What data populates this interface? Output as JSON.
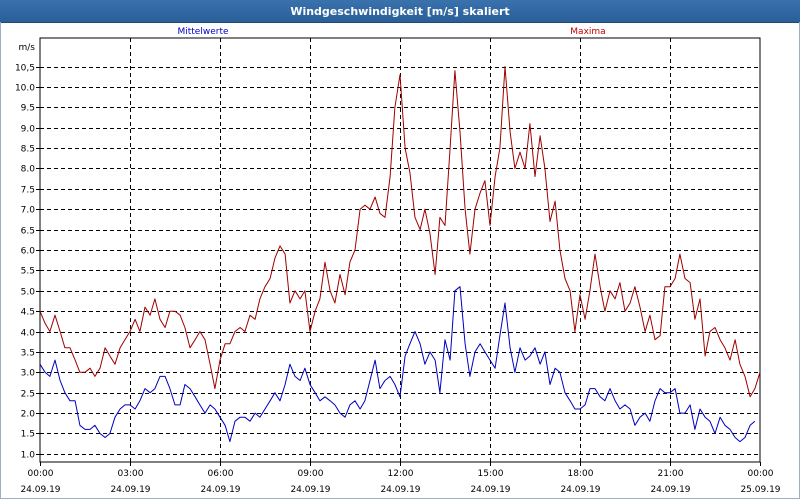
{
  "window": {
    "title": "Windgeschwindigkeit [m/s] skaliert"
  },
  "chart_data": {
    "type": "line",
    "title": "Windgeschwindigkeit [m/s] skaliert",
    "ylabel": "m/s",
    "xlabel": "",
    "ylim": [
      0.8,
      11.2
    ],
    "yticks": [
      1.0,
      1.5,
      2.0,
      2.5,
      3.0,
      3.5,
      4.0,
      4.5,
      5.0,
      5.5,
      6.0,
      6.5,
      7.0,
      7.5,
      8.0,
      8.5,
      9.0,
      9.5,
      10.0,
      10.5
    ],
    "ytick_labels": [
      "1.0",
      "1.5",
      "2.0",
      "2.5",
      "3.0",
      "3.5",
      "4.0",
      "4.5",
      "5.0",
      "5.5",
      "6.0",
      "6.5",
      "7.0",
      "7.5",
      "8.0",
      "8.5",
      "9.0",
      "9.5",
      "10.0",
      "10,5"
    ],
    "xlim_hours": [
      0,
      24
    ],
    "xticks": [
      {
        "h": 0,
        "time": "00:00",
        "date": "24.09.19"
      },
      {
        "h": 3,
        "time": "03:00",
        "date": "24.09.19"
      },
      {
        "h": 6,
        "time": "06:00",
        "date": "24.09.19"
      },
      {
        "h": 9,
        "time": "09:00",
        "date": "24.09.19"
      },
      {
        "h": 12,
        "time": "12:00",
        "date": "24.09.19"
      },
      {
        "h": 15,
        "time": "15:00",
        "date": "24.09.19"
      },
      {
        "h": 18,
        "time": "18:00",
        "date": "24.09.19"
      },
      {
        "h": 21,
        "time": "21:00",
        "date": "24.09.19"
      },
      {
        "h": 24,
        "time": "00:00",
        "date": "25.09.19"
      }
    ],
    "grid": true,
    "series": [
      {
        "name": "Mittelwerte",
        "color": "#0000c0",
        "points": [
          [
            0.0,
            3.2
          ],
          [
            0.17,
            3.0
          ],
          [
            0.33,
            2.9
          ],
          [
            0.5,
            3.3
          ],
          [
            0.67,
            2.8
          ],
          [
            0.83,
            2.5
          ],
          [
            1.0,
            2.3
          ],
          [
            1.17,
            2.3
          ],
          [
            1.33,
            1.7
          ],
          [
            1.5,
            1.6
          ],
          [
            1.67,
            1.6
          ],
          [
            1.83,
            1.7
          ],
          [
            2.0,
            1.5
          ],
          [
            2.17,
            1.4
          ],
          [
            2.33,
            1.5
          ],
          [
            2.5,
            1.9
          ],
          [
            2.67,
            2.1
          ],
          [
            2.83,
            2.2
          ],
          [
            3.0,
            2.2
          ],
          [
            3.17,
            2.1
          ],
          [
            3.33,
            2.3
          ],
          [
            3.5,
            2.6
          ],
          [
            3.67,
            2.5
          ],
          [
            3.83,
            2.6
          ],
          [
            4.0,
            2.9
          ],
          [
            4.17,
            2.9
          ],
          [
            4.33,
            2.6
          ],
          [
            4.5,
            2.2
          ],
          [
            4.67,
            2.2
          ],
          [
            4.83,
            2.7
          ],
          [
            5.0,
            2.6
          ],
          [
            5.17,
            2.4
          ],
          [
            5.33,
            2.2
          ],
          [
            5.5,
            2.0
          ],
          [
            5.67,
            2.2
          ],
          [
            5.83,
            2.1
          ],
          [
            6.0,
            1.9
          ],
          [
            6.17,
            1.7
          ],
          [
            6.33,
            1.3
          ],
          [
            6.5,
            1.8
          ],
          [
            6.67,
            1.9
          ],
          [
            6.83,
            1.9
          ],
          [
            7.0,
            1.8
          ],
          [
            7.17,
            2.0
          ],
          [
            7.33,
            1.9
          ],
          [
            7.5,
            2.1
          ],
          [
            7.67,
            2.3
          ],
          [
            7.83,
            2.5
          ],
          [
            8.0,
            2.3
          ],
          [
            8.17,
            2.7
          ],
          [
            8.33,
            3.2
          ],
          [
            8.5,
            2.9
          ],
          [
            8.67,
            2.8
          ],
          [
            8.83,
            3.1
          ],
          [
            9.0,
            2.7
          ],
          [
            9.17,
            2.5
          ],
          [
            9.33,
            2.3
          ],
          [
            9.5,
            2.4
          ],
          [
            9.67,
            2.3
          ],
          [
            9.83,
            2.2
          ],
          [
            10.0,
            2.0
          ],
          [
            10.17,
            1.9
          ],
          [
            10.33,
            2.2
          ],
          [
            10.5,
            2.3
          ],
          [
            10.67,
            2.1
          ],
          [
            10.83,
            2.3
          ],
          [
            11.0,
            2.8
          ],
          [
            11.17,
            3.3
          ],
          [
            11.33,
            2.6
          ],
          [
            11.5,
            2.8
          ],
          [
            11.67,
            2.9
          ],
          [
            11.83,
            2.7
          ],
          [
            12.0,
            2.4
          ],
          [
            12.17,
            3.4
          ],
          [
            12.33,
            3.7
          ],
          [
            12.5,
            4.0
          ],
          [
            12.67,
            3.7
          ],
          [
            12.83,
            3.2
          ],
          [
            13.0,
            3.5
          ],
          [
            13.17,
            3.3
          ],
          [
            13.33,
            2.5
          ],
          [
            13.5,
            3.8
          ],
          [
            13.67,
            3.3
          ],
          [
            13.83,
            5.0
          ],
          [
            14.0,
            5.1
          ],
          [
            14.17,
            3.7
          ],
          [
            14.33,
            2.9
          ],
          [
            14.5,
            3.5
          ],
          [
            14.67,
            3.7
          ],
          [
            14.83,
            3.5
          ],
          [
            15.0,
            3.3
          ],
          [
            15.17,
            3.1
          ],
          [
            15.33,
            3.9
          ],
          [
            15.5,
            4.7
          ],
          [
            15.67,
            3.6
          ],
          [
            15.83,
            3.0
          ],
          [
            16.0,
            3.6
          ],
          [
            16.17,
            3.3
          ],
          [
            16.33,
            3.4
          ],
          [
            16.5,
            3.6
          ],
          [
            16.67,
            3.2
          ],
          [
            16.83,
            3.5
          ],
          [
            17.0,
            2.7
          ],
          [
            17.17,
            3.1
          ],
          [
            17.33,
            3.0
          ],
          [
            17.5,
            2.5
          ],
          [
            17.67,
            2.3
          ],
          [
            17.83,
            2.1
          ],
          [
            18.0,
            2.1
          ],
          [
            18.17,
            2.2
          ],
          [
            18.33,
            2.6
          ],
          [
            18.5,
            2.6
          ],
          [
            18.67,
            2.4
          ],
          [
            18.83,
            2.3
          ],
          [
            19.0,
            2.6
          ],
          [
            19.17,
            2.3
          ],
          [
            19.33,
            2.1
          ],
          [
            19.5,
            2.2
          ],
          [
            19.67,
            2.1
          ],
          [
            19.83,
            1.7
          ],
          [
            20.0,
            1.9
          ],
          [
            20.17,
            2.0
          ],
          [
            20.33,
            1.8
          ],
          [
            20.5,
            2.3
          ],
          [
            20.67,
            2.6
          ],
          [
            20.83,
            2.5
          ],
          [
            21.0,
            2.5
          ],
          [
            21.17,
            2.6
          ],
          [
            21.33,
            2.0
          ],
          [
            21.5,
            2.0
          ],
          [
            21.67,
            2.2
          ],
          [
            21.83,
            1.6
          ],
          [
            22.0,
            2.1
          ],
          [
            22.17,
            1.9
          ],
          [
            22.33,
            1.8
          ],
          [
            22.5,
            1.5
          ],
          [
            22.67,
            1.9
          ],
          [
            22.83,
            1.7
          ],
          [
            23.0,
            1.6
          ],
          [
            23.17,
            1.4
          ],
          [
            23.33,
            1.3
          ],
          [
            23.5,
            1.4
          ],
          [
            23.67,
            1.7
          ],
          [
            23.83,
            1.8
          ]
        ]
      },
      {
        "name": "Maxima",
        "color": "#a00000",
        "points": [
          [
            0.0,
            4.5
          ],
          [
            0.17,
            4.2
          ],
          [
            0.33,
            4.0
          ],
          [
            0.5,
            4.4
          ],
          [
            0.67,
            4.0
          ],
          [
            0.83,
            3.6
          ],
          [
            1.0,
            3.6
          ],
          [
            1.17,
            3.3
          ],
          [
            1.33,
            3.0
          ],
          [
            1.5,
            3.0
          ],
          [
            1.67,
            3.1
          ],
          [
            1.83,
            2.9
          ],
          [
            2.0,
            3.1
          ],
          [
            2.17,
            3.6
          ],
          [
            2.33,
            3.4
          ],
          [
            2.5,
            3.2
          ],
          [
            2.67,
            3.6
          ],
          [
            2.83,
            3.8
          ],
          [
            3.0,
            4.0
          ],
          [
            3.17,
            4.3
          ],
          [
            3.33,
            4.0
          ],
          [
            3.5,
            4.6
          ],
          [
            3.67,
            4.4
          ],
          [
            3.83,
            4.8
          ],
          [
            4.0,
            4.3
          ],
          [
            4.17,
            4.1
          ],
          [
            4.33,
            4.5
          ],
          [
            4.5,
            4.5
          ],
          [
            4.67,
            4.4
          ],
          [
            4.83,
            4.1
          ],
          [
            5.0,
            3.6
          ],
          [
            5.17,
            3.8
          ],
          [
            5.33,
            4.0
          ],
          [
            5.5,
            3.8
          ],
          [
            5.67,
            3.2
          ],
          [
            5.83,
            2.6
          ],
          [
            6.0,
            3.3
          ],
          [
            6.17,
            3.7
          ],
          [
            6.33,
            3.7
          ],
          [
            6.5,
            4.0
          ],
          [
            6.67,
            4.1
          ],
          [
            6.83,
            4.0
          ],
          [
            7.0,
            4.4
          ],
          [
            7.17,
            4.3
          ],
          [
            7.33,
            4.8
          ],
          [
            7.5,
            5.1
          ],
          [
            7.67,
            5.3
          ],
          [
            7.83,
            5.8
          ],
          [
            8.0,
            6.1
          ],
          [
            8.17,
            5.9
          ],
          [
            8.33,
            4.7
          ],
          [
            8.5,
            5.0
          ],
          [
            8.67,
            4.8
          ],
          [
            8.83,
            5.0
          ],
          [
            9.0,
            4.0
          ],
          [
            9.17,
            4.5
          ],
          [
            9.33,
            4.8
          ],
          [
            9.5,
            5.7
          ],
          [
            9.67,
            5.0
          ],
          [
            9.83,
            4.7
          ],
          [
            10.0,
            5.4
          ],
          [
            10.17,
            4.9
          ],
          [
            10.33,
            5.7
          ],
          [
            10.5,
            6.0
          ],
          [
            10.67,
            7.0
          ],
          [
            10.83,
            7.1
          ],
          [
            11.0,
            7.0
          ],
          [
            11.17,
            7.3
          ],
          [
            11.33,
            6.9
          ],
          [
            11.5,
            6.8
          ],
          [
            11.67,
            7.8
          ],
          [
            11.83,
            9.5
          ],
          [
            12.0,
            10.3
          ],
          [
            12.17,
            8.5
          ],
          [
            12.33,
            7.9
          ],
          [
            12.5,
            6.8
          ],
          [
            12.67,
            6.5
          ],
          [
            12.83,
            7.0
          ],
          [
            13.0,
            6.4
          ],
          [
            13.17,
            5.4
          ],
          [
            13.33,
            6.8
          ],
          [
            13.5,
            6.6
          ],
          [
            13.67,
            8.5
          ],
          [
            13.83,
            10.4
          ],
          [
            14.0,
            8.9
          ],
          [
            14.17,
            7.0
          ],
          [
            14.33,
            5.9
          ],
          [
            14.5,
            7.0
          ],
          [
            14.67,
            7.4
          ],
          [
            14.83,
            7.7
          ],
          [
            15.0,
            6.6
          ],
          [
            15.17,
            7.8
          ],
          [
            15.33,
            8.5
          ],
          [
            15.5,
            10.5
          ],
          [
            15.67,
            8.9
          ],
          [
            15.83,
            8.0
          ],
          [
            16.0,
            8.4
          ],
          [
            16.17,
            8.0
          ],
          [
            16.33,
            9.1
          ],
          [
            16.5,
            7.8
          ],
          [
            16.67,
            8.8
          ],
          [
            16.83,
            8.0
          ],
          [
            17.0,
            6.7
          ],
          [
            17.17,
            7.2
          ],
          [
            17.33,
            6.0
          ],
          [
            17.5,
            5.3
          ],
          [
            17.67,
            5.0
          ],
          [
            17.83,
            4.0
          ],
          [
            18.0,
            4.9
          ],
          [
            18.17,
            4.3
          ],
          [
            18.33,
            5.0
          ],
          [
            18.5,
            5.9
          ],
          [
            18.67,
            5.1
          ],
          [
            18.83,
            4.5
          ],
          [
            19.0,
            5.0
          ],
          [
            19.17,
            4.8
          ],
          [
            19.33,
            5.2
          ],
          [
            19.5,
            4.5
          ],
          [
            19.67,
            4.7
          ],
          [
            19.83,
            5.1
          ],
          [
            20.0,
            4.6
          ],
          [
            20.17,
            4.0
          ],
          [
            20.33,
            4.4
          ],
          [
            20.5,
            3.8
          ],
          [
            20.67,
            3.9
          ],
          [
            20.83,
            5.1
          ],
          [
            21.0,
            5.1
          ],
          [
            21.17,
            5.3
          ],
          [
            21.33,
            5.9
          ],
          [
            21.5,
            5.3
          ],
          [
            21.67,
            5.2
          ],
          [
            21.83,
            4.3
          ],
          [
            22.0,
            4.8
          ],
          [
            22.17,
            3.4
          ],
          [
            22.33,
            4.0
          ],
          [
            22.5,
            4.1
          ],
          [
            22.67,
            3.8
          ],
          [
            22.83,
            3.6
          ],
          [
            23.0,
            3.3
          ],
          [
            23.17,
            3.8
          ],
          [
            23.33,
            3.2
          ],
          [
            23.5,
            2.9
          ],
          [
            23.67,
            2.4
          ],
          [
            23.83,
            2.6
          ],
          [
            24.0,
            3.0
          ]
        ]
      }
    ]
  }
}
